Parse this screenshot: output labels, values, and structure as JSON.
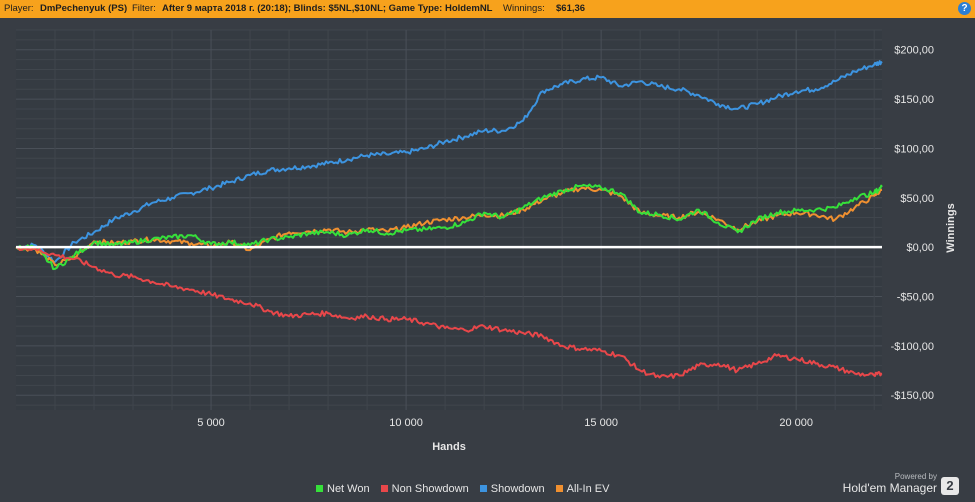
{
  "header": {
    "player_label": "Player:",
    "player_value": "DmPechenyuk (PS)",
    "filter_label": "Filter:",
    "filter_value": "After 9 марта 2018 г. (20:18); Blinds: $5NL,$10NL; Game Type: HoldemNL",
    "winnings_label": "Winnings:",
    "winnings_value": "$61,36",
    "help_glyph": "?"
  },
  "footer": {
    "powered_by": "Powered by",
    "brand": "Hold'em Manager",
    "logo_text": "2"
  },
  "chart_data": {
    "type": "line",
    "xlabel": "Hands",
    "ylabel": "Winnings",
    "xlim": [
      0,
      22200
    ],
    "ylim": [
      -165,
      220
    ],
    "x_ticks": [
      5000,
      10000,
      15000,
      20000
    ],
    "x_tick_labels": [
      "5 000",
      "10 000",
      "15 000",
      "20 000"
    ],
    "y_ticks": [
      200,
      150,
      100,
      50,
      0,
      -50,
      -100,
      -150
    ],
    "y_tick_labels": [
      "$200,00",
      "$150,00",
      "$100,00",
      "$50,00",
      "$0,00",
      "-$50,00",
      "-$100,00",
      "-$150,00"
    ],
    "grid": true,
    "legend_position": "bottom-center",
    "series": [
      {
        "name": "Showdown",
        "color": "#3d94e0",
        "x": [
          0,
          500,
          1000,
          1500,
          2000,
          2500,
          3000,
          3500,
          4000,
          4500,
          5000,
          5500,
          6000,
          6500,
          7000,
          7500,
          8000,
          8500,
          9000,
          9500,
          10000,
          10500,
          11000,
          11500,
          12000,
          12500,
          13000,
          13500,
          14000,
          14500,
          15000,
          15500,
          16000,
          16500,
          17000,
          17500,
          18000,
          18500,
          19000,
          19500,
          20000,
          20500,
          21000,
          21500,
          22000,
          22200
        ],
        "values": [
          0,
          2,
          -15,
          5,
          15,
          28,
          36,
          45,
          50,
          55,
          60,
          66,
          73,
          78,
          80,
          82,
          85,
          89,
          93,
          94,
          96,
          100,
          107,
          112,
          118,
          118,
          128,
          158,
          165,
          170,
          172,
          163,
          168,
          163,
          160,
          154,
          145,
          140,
          145,
          152,
          158,
          160,
          168,
          178,
          185,
          188
        ]
      },
      {
        "name": "Net Won",
        "color": "#36e03a",
        "x": [
          0,
          500,
          1000,
          1500,
          2000,
          2500,
          3000,
          3500,
          4000,
          4500,
          5000,
          5500,
          6000,
          6500,
          7000,
          7500,
          8000,
          8500,
          9000,
          9500,
          10000,
          10500,
          11000,
          11500,
          12000,
          12500,
          13000,
          13500,
          14000,
          14500,
          15000,
          15500,
          16000,
          16500,
          17000,
          17500,
          18000,
          18500,
          19000,
          19500,
          20000,
          20500,
          21000,
          21500,
          22000,
          22200
        ],
        "values": [
          0,
          0,
          -22,
          -8,
          5,
          2,
          5,
          8,
          10,
          12,
          3,
          5,
          2,
          8,
          10,
          14,
          15,
          12,
          18,
          14,
          17,
          18,
          20,
          25,
          35,
          30,
          40,
          50,
          57,
          62,
          60,
          55,
          35,
          33,
          28,
          38,
          25,
          15,
          28,
          35,
          37,
          38,
          40,
          50,
          55,
          61
        ]
      },
      {
        "name": "All-In EV",
        "color": "#f09030",
        "x": [
          0,
          500,
          1000,
          1500,
          2000,
          2500,
          3000,
          3500,
          4000,
          4500,
          5000,
          5500,
          6000,
          6500,
          7000,
          7500,
          8000,
          8500,
          9000,
          9500,
          10000,
          10500,
          11000,
          11500,
          12000,
          12500,
          13000,
          13500,
          14000,
          14500,
          15000,
          15500,
          16000,
          16500,
          17000,
          17500,
          18000,
          18500,
          19000,
          19500,
          20000,
          20500,
          21000,
          21500,
          22000,
          22200
        ],
        "values": [
          0,
          -2,
          -18,
          -10,
          6,
          4,
          6,
          8,
          6,
          4,
          1,
          5,
          -3,
          8,
          15,
          16,
          18,
          15,
          18,
          16,
          20,
          25,
          28,
          30,
          33,
          32,
          38,
          48,
          55,
          60,
          58,
          52,
          35,
          32,
          30,
          36,
          28,
          18,
          26,
          32,
          35,
          33,
          28,
          40,
          52,
          58
        ]
      },
      {
        "name": "Non Showdown",
        "color": "#e8474a",
        "x": [
          0,
          500,
          1000,
          1500,
          2000,
          2500,
          3000,
          3500,
          4000,
          4500,
          5000,
          5500,
          6000,
          6500,
          7000,
          7500,
          8000,
          8500,
          9000,
          9500,
          10000,
          10500,
          11000,
          11500,
          12000,
          12500,
          13000,
          13500,
          14000,
          14500,
          15000,
          15500,
          16000,
          16500,
          17000,
          17500,
          18000,
          18500,
          19000,
          19500,
          20000,
          20500,
          21000,
          21500,
          22000,
          22200
        ],
        "values": [
          0,
          -2,
          -8,
          -12,
          -20,
          -28,
          -30,
          -35,
          -40,
          -43,
          -48,
          -53,
          -57,
          -65,
          -70,
          -68,
          -67,
          -72,
          -70,
          -73,
          -73,
          -77,
          -82,
          -84,
          -80,
          -84,
          -87,
          -90,
          -100,
          -103,
          -105,
          -110,
          -125,
          -132,
          -130,
          -120,
          -118,
          -125,
          -118,
          -110,
          -113,
          -118,
          -122,
          -128,
          -130,
          -128
        ]
      }
    ]
  },
  "legend": [
    {
      "label": "Net Won",
      "color": "#36e03a"
    },
    {
      "label": "Non Showdown",
      "color": "#e8474a"
    },
    {
      "label": "Showdown",
      "color": "#3d94e0"
    },
    {
      "label": "All-In EV",
      "color": "#f09030"
    }
  ]
}
